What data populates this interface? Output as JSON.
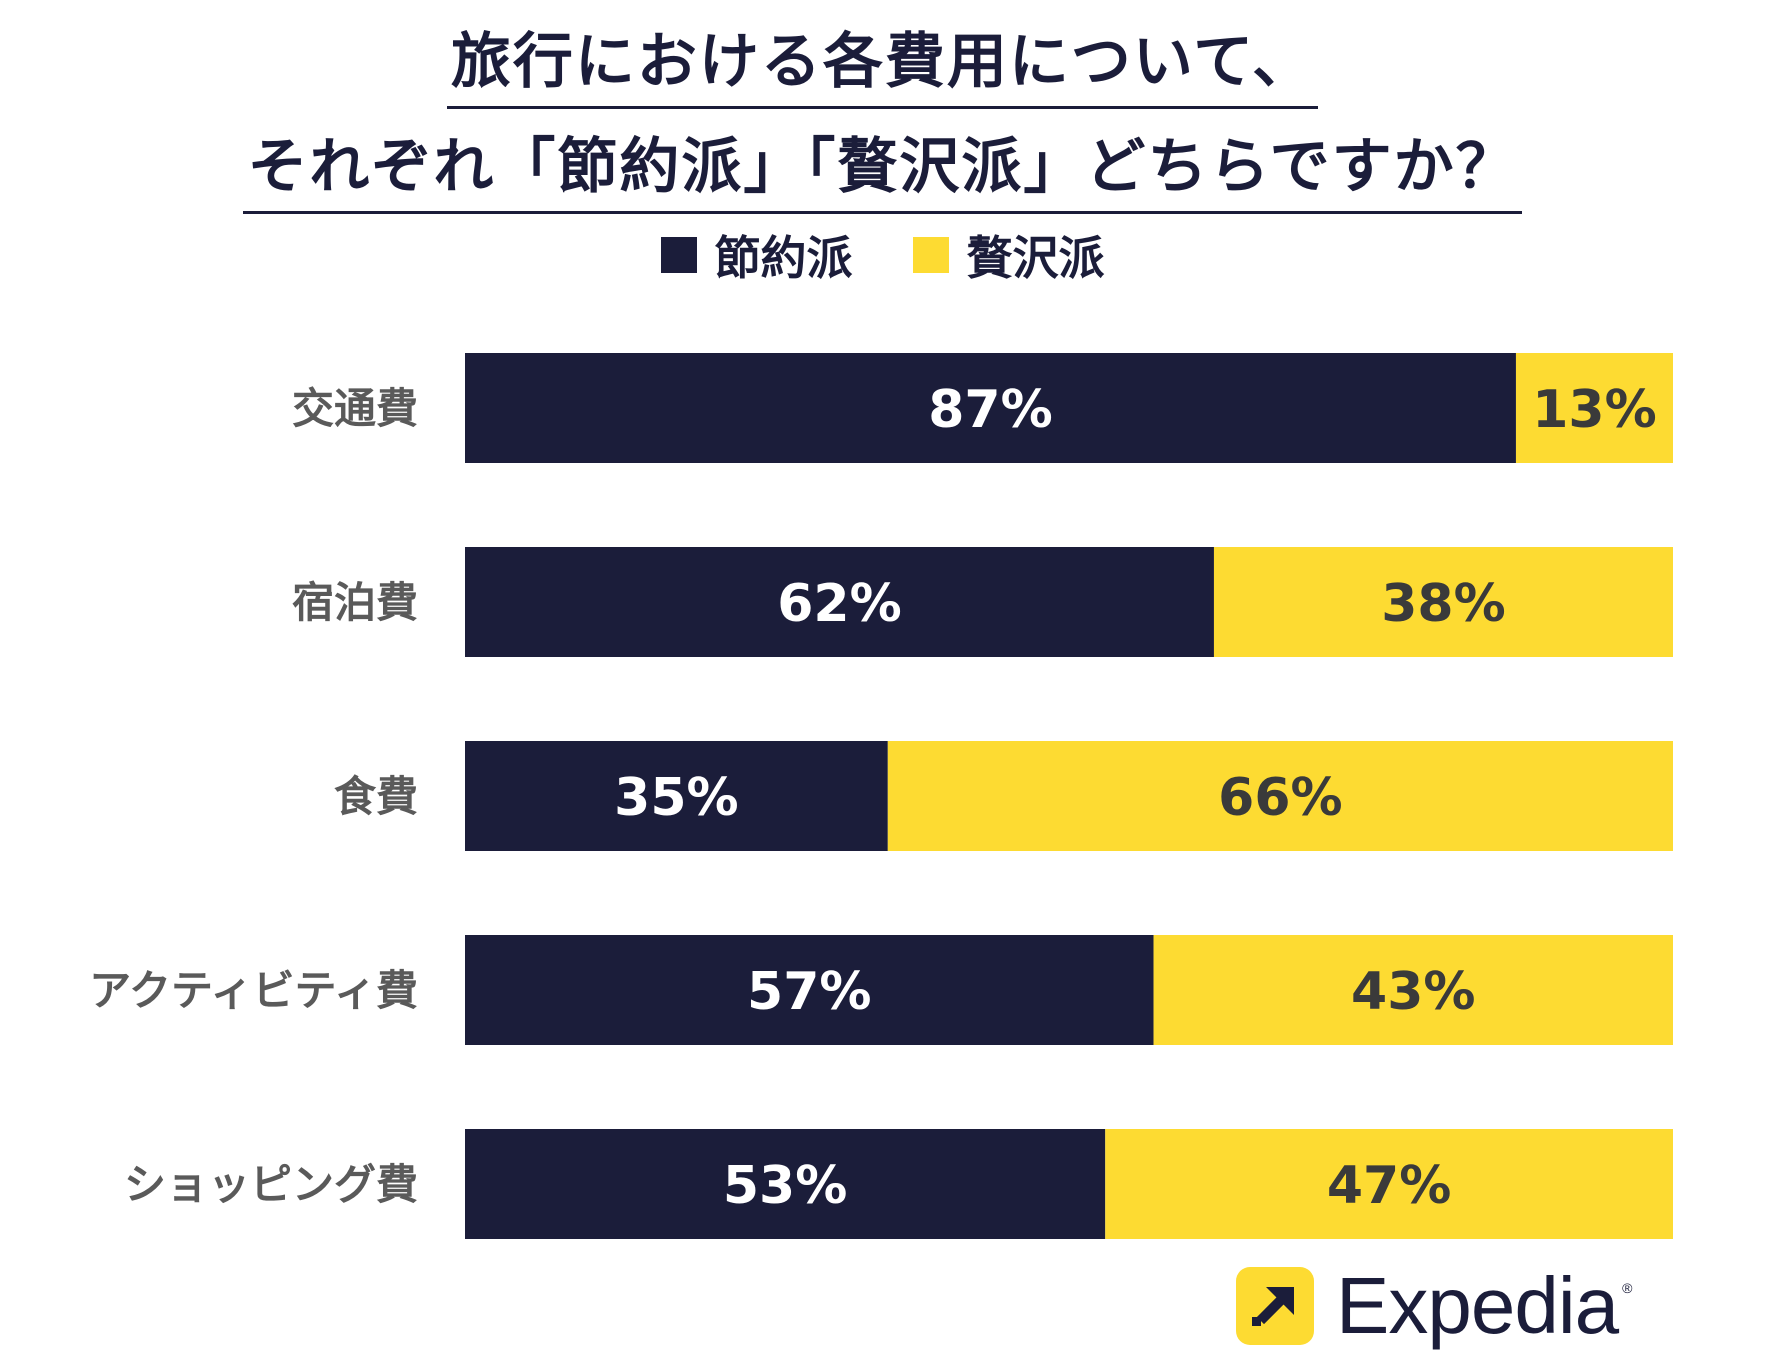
{
  "title_lines": [
    "旅行における各費用について、",
    "それぞれ「節約派」「贅沢派」どちらですか？"
  ],
  "logo": {
    "word": "Expedia",
    "mark": "®"
  },
  "colors": {
    "saver": "#1b1d3a",
    "luxury": "#fddb32",
    "saver_text": "#ffffff",
    "luxury_text": "#3a3a3a"
  },
  "chart_data": {
    "type": "bar",
    "orientation": "horizontal",
    "stacked": true,
    "legend_position": "top-center",
    "categories": [
      "交通費",
      "宿泊費",
      "食費",
      "アクティビティ費",
      "ショッピング費"
    ],
    "series": [
      {
        "name": "節約派",
        "values": [
          87,
          62,
          35,
          57,
          53
        ],
        "labels": [
          "87%",
          "62%",
          "35%",
          "57%",
          "53%"
        ]
      },
      {
        "name": "贅沢派",
        "values": [
          13,
          38,
          66,
          43,
          47
        ],
        "labels": [
          "13%",
          "38%",
          "66%",
          "43%",
          "47%"
        ]
      }
    ]
  }
}
